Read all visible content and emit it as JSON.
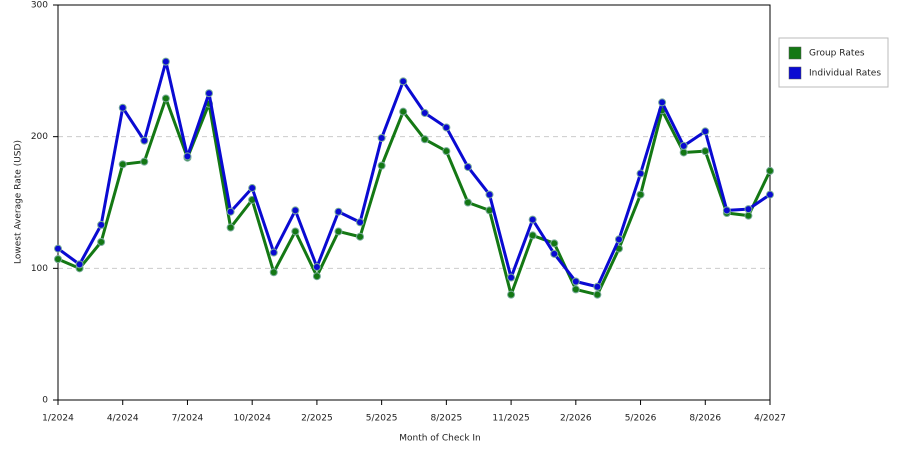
{
  "chart_data": {
    "type": "line",
    "x_label": "Month of Check In",
    "y_label": "Lowest Average Rate (USD)",
    "categories": [
      "1/2024",
      null,
      null,
      "4/2024",
      null,
      null,
      "7/2024",
      null,
      null,
      "10/2024",
      null,
      null,
      "2/2025",
      null,
      null,
      "5/2025",
      null,
      null,
      "8/2025",
      null,
      null,
      "11/2025",
      null,
      null,
      "2/2026",
      null,
      null,
      "5/2026",
      null,
      null,
      "8/2026",
      null,
      null,
      "4/2027"
    ],
    "series": [
      {
        "name": "Group Rates",
        "color": "#147814",
        "values": [
          107,
          100,
          120,
          179,
          181,
          229,
          184,
          225,
          131,
          152,
          97,
          128,
          94,
          128,
          124,
          178,
          219,
          198,
          189,
          150,
          144,
          80,
          125,
          119,
          84,
          80,
          115,
          156,
          220,
          188,
          189,
          142,
          140,
          174
        ]
      },
      {
        "name": "Individual Rates",
        "color": "#0a0ad2",
        "values": [
          115,
          103,
          133,
          222,
          197,
          257,
          185,
          233,
          143,
          161,
          112,
          144,
          101,
          143,
          135,
          199,
          242,
          218,
          207,
          177,
          156,
          93,
          137,
          111,
          90,
          86,
          122,
          172,
          226,
          193,
          204,
          144,
          145,
          156
        ]
      }
    ],
    "ylim": [
      0,
      300
    ],
    "yticks": [
      0,
      100,
      200,
      300
    ],
    "grid": true,
    "legend": "right"
  }
}
